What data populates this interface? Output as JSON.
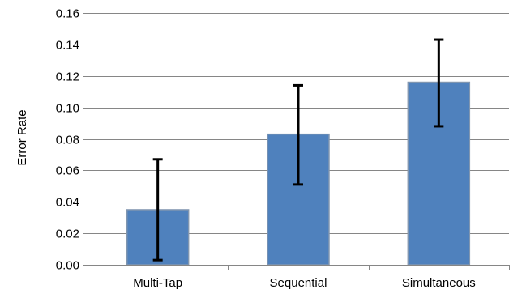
{
  "chart_data": {
    "type": "bar",
    "title": "",
    "xlabel": "",
    "ylabel": "Error Rate",
    "categories": [
      "Multi-Tap",
      "Sequential",
      "Simultaneous"
    ],
    "series": [
      {
        "values": [
          0.035,
          0.083,
          0.116
        ],
        "error_low": [
          0.003,
          0.051,
          0.088
        ],
        "error_high": [
          0.067,
          0.114,
          0.143
        ]
      }
    ],
    "ylim": [
      0,
      0.16
    ],
    "yticks": [
      "0.00",
      "0.02",
      "0.04",
      "0.06",
      "0.08",
      "0.10",
      "0.12",
      "0.14",
      "0.16"
    ],
    "grid": true,
    "legend": "none",
    "colors": {
      "bar_fill": "#4f81bd",
      "bar_stroke": "#8096b0",
      "error_bar": "#000000",
      "gridline": "#868686",
      "axis": "#868686"
    }
  }
}
